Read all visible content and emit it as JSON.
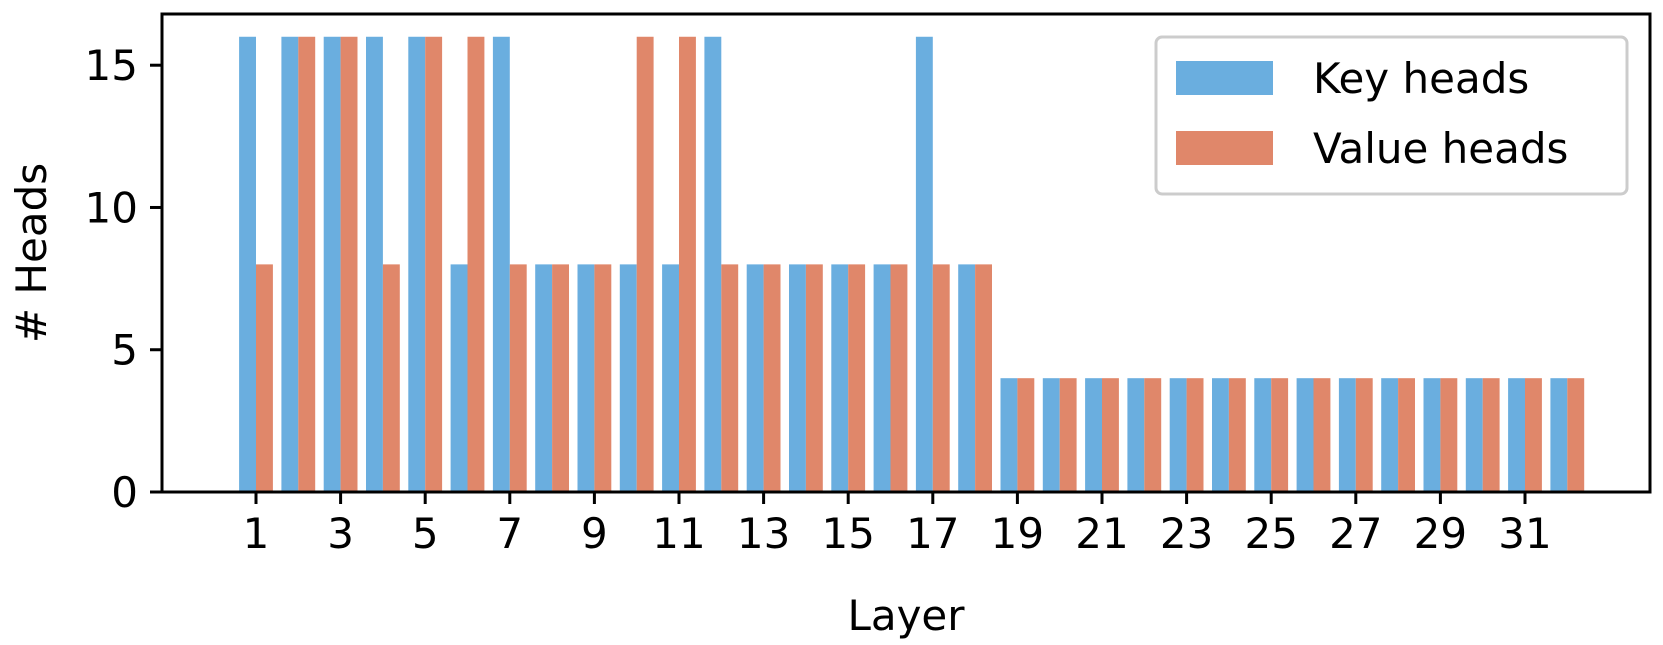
{
  "chart_data": {
    "type": "bar",
    "xlabel": "Layer",
    "ylabel": "# Heads",
    "ylim": [
      0,
      16.8
    ],
    "yticks": [
      0,
      5,
      10,
      15
    ],
    "xtick_labels": [
      "1",
      "3",
      "5",
      "7",
      "9",
      "11",
      "13",
      "15",
      "17",
      "19",
      "21",
      "23",
      "25",
      "27",
      "29",
      "31"
    ],
    "categories": [
      1,
      2,
      3,
      4,
      5,
      6,
      7,
      8,
      9,
      10,
      11,
      12,
      13,
      14,
      15,
      16,
      17,
      18,
      19,
      20,
      21,
      22,
      23,
      24,
      25,
      26,
      27,
      28,
      29,
      30,
      31,
      32
    ],
    "series": [
      {
        "name": "Key heads",
        "color": "#6AAEDF",
        "values": [
          16,
          16,
          16,
          16,
          16,
          8,
          16,
          8,
          8,
          8,
          8,
          16,
          8,
          8,
          8,
          8,
          16,
          8,
          4,
          4,
          4,
          4,
          4,
          4,
          4,
          4,
          4,
          4,
          4,
          4,
          4,
          4
        ]
      },
      {
        "name": "Value heads",
        "color": "#E0876A",
        "values": [
          8,
          16,
          16,
          8,
          16,
          16,
          8,
          8,
          8,
          16,
          16,
          8,
          8,
          8,
          8,
          8,
          8,
          8,
          4,
          4,
          4,
          4,
          4,
          4,
          4,
          4,
          4,
          4,
          4,
          4,
          4,
          4
        ]
      }
    ],
    "legend_position": "top-right",
    "grid": false
  }
}
